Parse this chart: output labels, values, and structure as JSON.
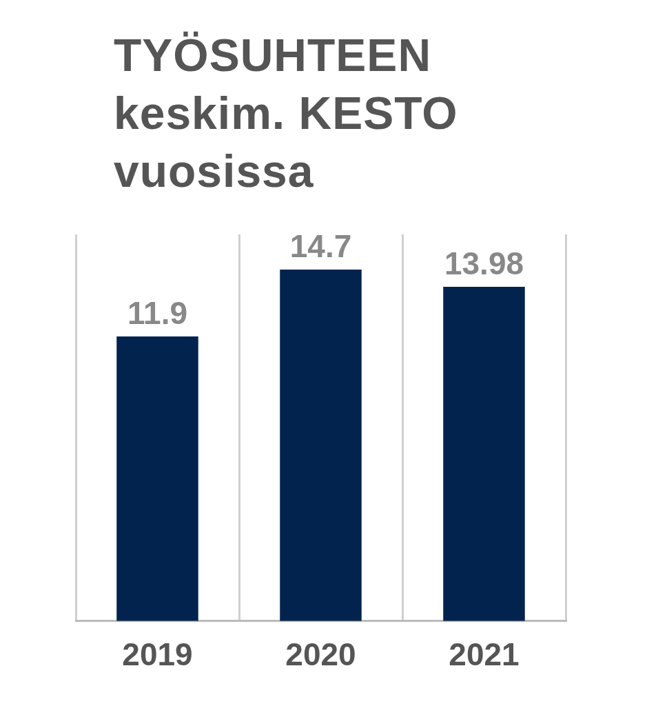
{
  "chart_data": {
    "type": "bar",
    "title": "TYÖSUHTEEN keskim. KESTO vuosissa",
    "categories": [
      "2019",
      "2020",
      "2021"
    ],
    "values": [
      11.9,
      14.7,
      13.98
    ],
    "color": "#03234f",
    "data_labels": true,
    "grid": "x",
    "legend": false
  }
}
